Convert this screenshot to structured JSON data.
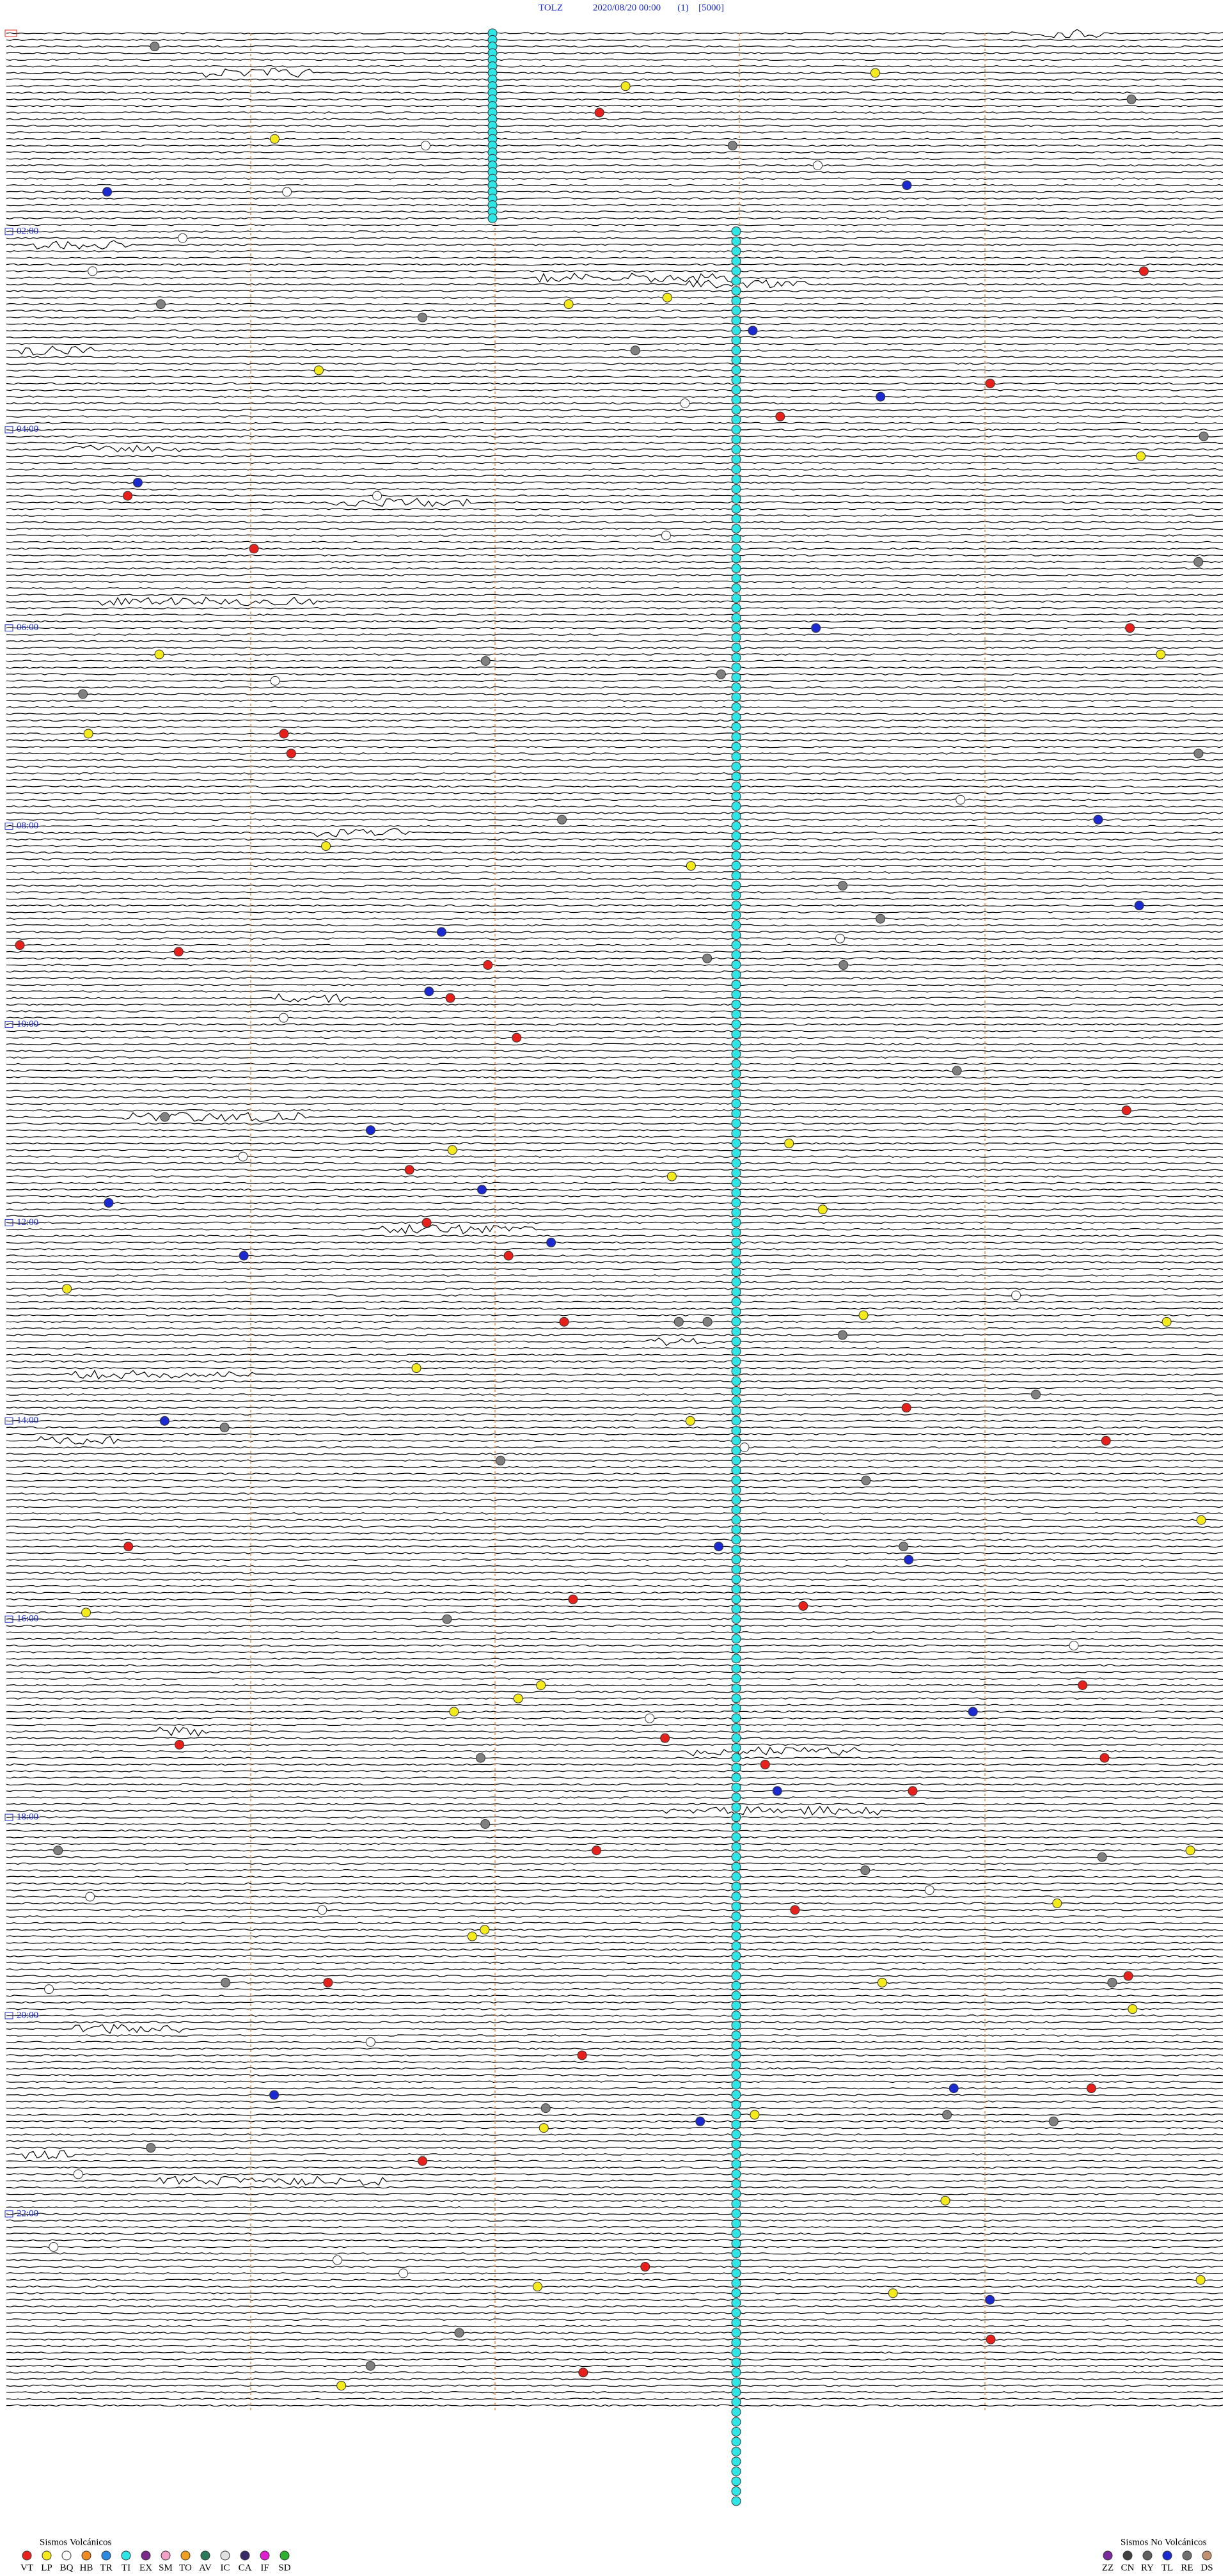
{
  "header": {
    "station": "TOLZ",
    "datetime": "2020/08/20 00:00",
    "channel": "(1)",
    "scale": "[5000]"
  },
  "hour_labels": [
    "02:00",
    "04:00",
    "06:00",
    "08:00",
    "10:00",
    "12:00",
    "14:00",
    "16:00",
    "18:00",
    "20:00",
    "22:00"
  ],
  "legend": {
    "volcanic": {
      "title": "Sismos Volcánicos",
      "items": [
        {
          "code": "VT",
          "color": "#e8201c"
        },
        {
          "code": "LP",
          "color": "#f5ea1b"
        },
        {
          "code": "BQ",
          "color": "#ffffff"
        },
        {
          "code": "HB",
          "color": "#f08a24"
        },
        {
          "code": "TR",
          "color": "#2d8ae0"
        },
        {
          "code": "TI",
          "color": "#2ee6e6"
        },
        {
          "code": "EX",
          "color": "#7a2a8a"
        },
        {
          "code": "SM",
          "color": "#f2a0c8"
        },
        {
          "code": "TO",
          "color": "#f0a020"
        },
        {
          "code": "AV",
          "color": "#2a7a5a"
        },
        {
          "code": "IC",
          "color": "#e0e0e0"
        },
        {
          "code": "CA",
          "color": "#3a2a6a"
        },
        {
          "code": "IF",
          "color": "#e020d0"
        },
        {
          "code": "SD",
          "color": "#30b030"
        }
      ]
    },
    "non_volcanic": {
      "title": "Sismos No Volcánicos",
      "items": [
        {
          "code": "ZZ",
          "color": "#7a2a9a"
        },
        {
          "code": "CN",
          "color": "#404040"
        },
        {
          "code": "RY",
          "color": "#606060"
        },
        {
          "code": "TL",
          "color": "#1a2ad0"
        },
        {
          "code": "RE",
          "color": "#707070"
        },
        {
          "code": "DS",
          "color": "#c09070"
        }
      ]
    }
  }
}
